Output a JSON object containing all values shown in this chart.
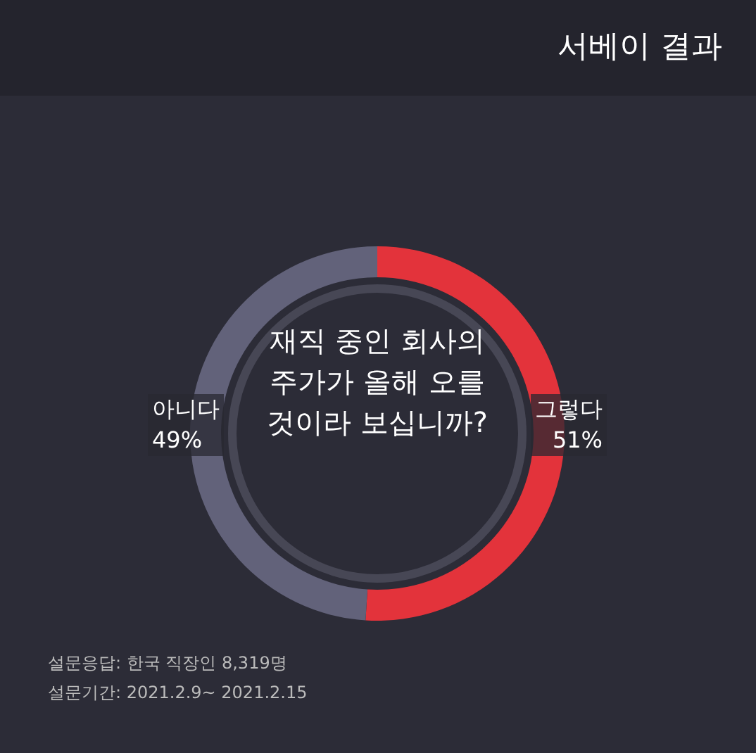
{
  "chart_data": {
    "type": "donut",
    "title": "서베이 결과",
    "annotations": [
      "재직 중인 회사의 주가가 올해 오를 것이라 보십니까?",
      "설문응답: 한국 직장인 8,319명",
      "설문기간: 2021.2.9~ 2021.2.15"
    ],
    "categories": [
      "그렇다",
      "아니다"
    ],
    "values": [
      51,
      49
    ],
    "colors": [
      "#e3333b",
      "#62627a"
    ],
    "value_labels": [
      "51%",
      "49%"
    ]
  }
}
